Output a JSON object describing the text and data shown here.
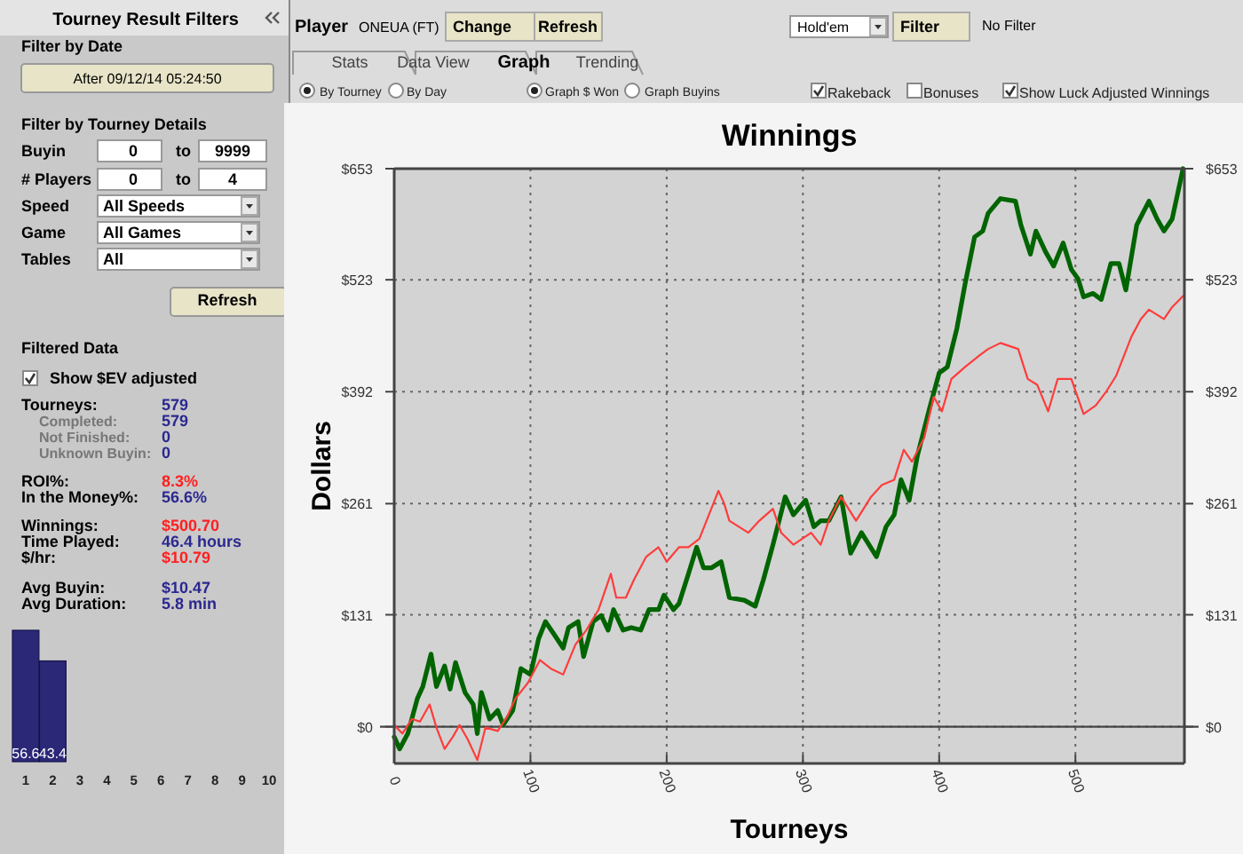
{
  "chart_data": [
    {
      "type": "line",
      "title": "Winnings",
      "xlabel": "Tourneys",
      "ylabel": "Dollars",
      "xlim": [
        0,
        580
      ],
      "xticks": [
        0,
        100,
        200,
        300,
        400,
        500
      ],
      "ylim": [
        -43,
        653
      ],
      "yticks": [
        {
          "value": 0,
          "label": "$0"
        },
        {
          "value": 131,
          "label": "$131"
        },
        {
          "value": 261,
          "label": "$261"
        },
        {
          "value": 392,
          "label": "$392"
        },
        {
          "value": 523,
          "label": "$523"
        },
        {
          "value": 653,
          "label": "$653"
        }
      ],
      "y2lim": [
        -43,
        653
      ],
      "y2ticks": [
        {
          "value": 0,
          "label": "$0"
        },
        {
          "value": 131,
          "label": "$131"
        },
        {
          "value": 261,
          "label": "$261"
        },
        {
          "value": 392,
          "label": "$392"
        },
        {
          "value": 523,
          "label": "$523"
        },
        {
          "value": 653,
          "label": "$653"
        }
      ],
      "grid": true,
      "ref_lines": [
        {
          "axis": "y",
          "value": 0,
          "color": "#444444"
        }
      ],
      "series": [
        {
          "color": "#006400",
          "x": [
            0,
            4,
            10,
            17,
            21,
            27,
            31,
            37,
            41,
            45,
            52,
            58,
            61,
            64,
            70,
            76,
            80,
            87,
            93,
            100,
            106,
            111,
            117,
            124,
            128,
            135,
            139,
            146,
            152,
            157,
            161,
            168,
            174,
            181,
            187,
            194,
            198,
            205,
            209,
            216,
            222,
            227,
            233,
            240,
            246,
            257,
            265,
            271,
            278,
            287,
            293,
            302,
            308,
            313,
            319,
            328,
            335,
            343,
            354,
            361,
            367,
            372,
            378,
            384,
            393,
            400,
            406,
            413,
            419,
            426,
            432,
            436,
            445,
            456,
            460,
            467,
            471,
            478,
            484,
            491,
            497,
            502,
            506,
            513,
            519,
            526,
            532,
            537,
            545,
            554,
            560,
            565,
            571,
            579
          ],
          "values": [
            -12,
            -26,
            -8,
            33,
            47,
            85,
            47,
            71,
            44,
            75,
            40,
            26,
            -8,
            40,
            9,
            19,
            2,
            19,
            68,
            61,
            103,
            123,
            109,
            92,
            116,
            123,
            82,
            123,
            130,
            113,
            137,
            113,
            116,
            113,
            137,
            137,
            154,
            137,
            144,
            179,
            210,
            186,
            186,
            193,
            151,
            148,
            141,
            172,
            213,
            269,
            248,
            265,
            234,
            241,
            241,
            269,
            203,
            227,
            199,
            234,
            248,
            289,
            265,
            317,
            373,
            414,
            421,
            466,
            518,
            573,
            580,
            601,
            618,
            615,
            587,
            553,
            580,
            556,
            539,
            566,
            535,
            524,
            503,
            507,
            500,
            542,
            542,
            511,
            587,
            615,
            594,
            580,
            594,
            653
          ]
        },
        {
          "color": "#ff3c3c",
          "x": [
            0,
            6,
            13,
            19,
            26,
            31,
            37,
            43,
            48,
            54,
            61,
            67,
            76,
            83,
            89,
            98,
            107,
            115,
            124,
            133,
            141,
            150,
            159,
            163,
            170,
            176,
            185,
            194,
            200,
            209,
            216,
            224,
            231,
            238,
            242,
            246,
            260,
            268,
            278,
            284,
            293,
            306,
            313,
            319,
            328,
            339,
            350,
            358,
            367,
            374,
            380,
            389,
            396,
            402,
            409,
            419,
            430,
            436,
            445,
            458,
            465,
            472,
            480,
            487,
            497,
            506,
            515,
            523,
            530,
            541,
            548,
            554,
            565,
            571,
            579
          ],
          "values": [
            2,
            -8,
            9,
            6,
            26,
            -1,
            -26,
            -12,
            2,
            -15,
            -39,
            -1,
            -5,
            12,
            33,
            51,
            78,
            68,
            61,
            96,
            113,
            137,
            179,
            151,
            151,
            172,
            199,
            210,
            193,
            210,
            210,
            220,
            248,
            276,
            262,
            241,
            227,
            241,
            255,
            227,
            213,
            227,
            213,
            241,
            269,
            241,
            269,
            283,
            289,
            324,
            310,
            338,
            386,
            369,
            407,
            421,
            435,
            442,
            449,
            442,
            407,
            400,
            369,
            407,
            407,
            366,
            376,
            393,
            411,
            456,
            477,
            488,
            477,
            491,
            504
          ]
        }
      ]
    },
    {
      "type": "bar",
      "categories": [
        "1",
        "2",
        "3",
        "4",
        "5",
        "6",
        "7",
        "8",
        "9",
        "10"
      ],
      "values": [
        56.6,
        43.4,
        0,
        0,
        0,
        0,
        0,
        0,
        0,
        0
      ],
      "value_labels": [
        "56.6",
        "43.4",
        null,
        null,
        null,
        null,
        null,
        null,
        null,
        null
      ],
      "color": "#2b2878"
    },
    {
      "type": "other",
      "annotations": [
        "Tourney Result Filters",
        "Filter by Date",
        "After 09/12/14 05:24:50",
        "Filter by Tourney Details",
        "Buyin",
        "0",
        "to",
        "9999",
        "# Players",
        "0",
        "to",
        "4",
        "Speed",
        "All Speeds",
        "Game",
        "All Games",
        "Tables",
        "All",
        "Refresh",
        "Filtered Data",
        "Show $EV adjusted",
        "Tourneys:",
        "579",
        "Completed:",
        "579",
        "Not Finished:",
        "0",
        "Unknown Buyin:",
        "0",
        "ROI%:",
        "8.3%",
        "In the Money%:",
        "56.6%",
        "Winnings:",
        "$500.70",
        "Time Played:",
        "46.4 hours",
        "$/hr:",
        "$10.79",
        "Avg Buyin:",
        "$10.47",
        "Avg Duration:",
        "5.8 min",
        "Player",
        "ONEUA (FT)",
        "Change",
        "Refresh",
        "Hold'em",
        "Filter",
        "No Filter",
        "Stats",
        "Data View",
        "Graph",
        "Trending",
        "By Tourney",
        "By Day",
        "Graph $ Won",
        "Graph Buyins",
        "Rakeback",
        "Bonuses",
        "Show Luck Adjusted Winnings"
      ]
    }
  ]
}
